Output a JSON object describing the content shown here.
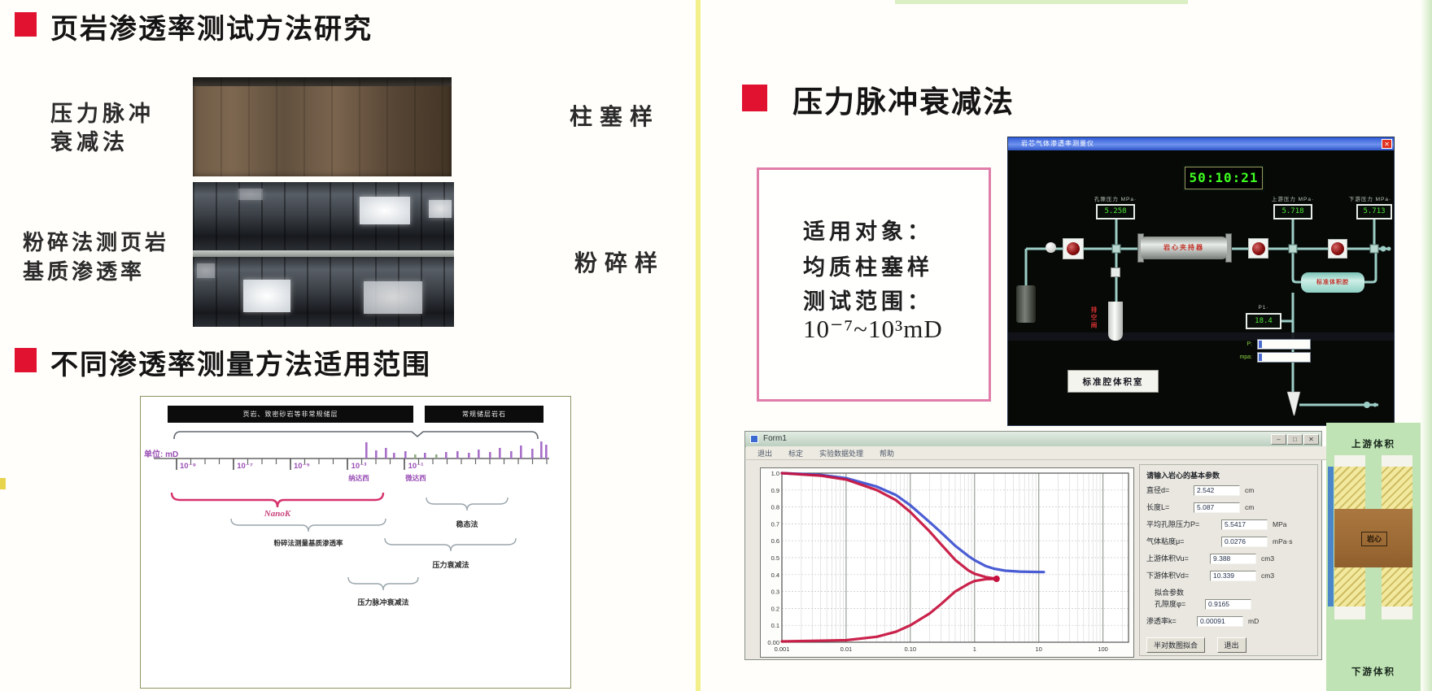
{
  "left": {
    "title1": "页岩渗透率测试方法研究",
    "pulse_label_line1": "压力脉冲",
    "pulse_label_line2": "衰减法",
    "plug_sample_label": "柱塞样",
    "crush_label_line1": "粉碎法测页岩",
    "crush_label_line2": "基质渗透率",
    "crushed_sample_label": "粉碎样",
    "title2": "不同渗透率测量方法适用范围"
  },
  "right": {
    "title": "压力脉冲衰减法",
    "infobox": {
      "line1": "适用对象：",
      "line2": "均质柱塞样",
      "line3": "测试范围：",
      "line4": "10⁻⁷~10³mD"
    },
    "daq_window": {
      "title": "岩芯气体渗透率测量仪",
      "close_glyph": "✕",
      "timer": "50:10:21",
      "gauges": [
        {
          "label": "孔隙压力 MPa·",
          "value": "5.258"
        },
        {
          "label": "上游压力 MPa·",
          "value": "5.718"
        },
        {
          "label": "下游压力 MPa·",
          "value": "5.713"
        }
      ],
      "gauge_small": {
        "label": "P1·",
        "value": "18.4"
      },
      "holder_label": "岩心夹持器",
      "holder2_label": "标准体积腔",
      "ref_box_label": "标准腔体积室",
      "vent_label": "排空阀",
      "field1_label": "P:",
      "field2_label": "mpa:"
    },
    "form_window": {
      "title": "Form1",
      "window_controls": [
        "–",
        "□",
        "✕"
      ],
      "menu": [
        "退出",
        "标定",
        "实验数据处理",
        "帮助"
      ],
      "panel": {
        "header": "请输入岩心的基本参数",
        "rows": [
          {
            "label": "直径d=",
            "value": "2.542",
            "unit": "cm"
          },
          {
            "label": "长度L=",
            "value": "5.087",
            "unit": "cm"
          },
          {
            "label": "平均孔隙压力P=",
            "value": "5.5417",
            "unit": "MPa"
          },
          {
            "label": "气体粘度μ=",
            "value": "0.0276",
            "unit": "mPa·s"
          },
          {
            "label": "上游体积Vu=",
            "value": "9.388",
            "unit": "cm3"
          },
          {
            "label": "下游体积Vd=",
            "value": "10.339",
            "unit": "cm3"
          }
        ],
        "fit_header": "拟合参数",
        "fit_rows": [
          {
            "label": "孔隙度φ=",
            "value": "0.9165",
            "unit": ""
          },
          {
            "label": "渗透率k=",
            "value": "0.00091",
            "unit": "mD"
          }
        ],
        "buttons": [
          "半对数图拟合",
          "退出"
        ]
      }
    },
    "schematic_panel": {
      "top": "上游体积",
      "core": "岩心",
      "bottom": "下游体积"
    }
  },
  "chart_data": [
    {
      "id": "permeability-range",
      "type": "scatter",
      "title": "不同渗透率测量方法适用范围",
      "x_unit_label": "单位: mD",
      "group_left": "页岩、致密砂岩等非常规储层",
      "group_right": "常规储层岩石",
      "x_tick_labels": [
        "10⁻⁹",
        "10⁻⁷",
        "10⁻⁵",
        "10⁻³",
        "10⁻¹"
      ],
      "x_tick_sub_labels": [
        "纳达西",
        "微达西"
      ],
      "method_ranges": [
        {
          "label": "NanoK"
        },
        {
          "label": "粉碎法测量基质渗透率"
        },
        {
          "label": "稳态法"
        },
        {
          "label": "压力衰减法"
        },
        {
          "label": "压力脉冲衰减法"
        }
      ],
      "marker_color": "#a86fc9",
      "marker_alt_color": "#8faa84",
      "markers": [
        [
          262,
          20
        ],
        [
          274,
          10
        ],
        [
          286,
          13
        ],
        [
          296,
          7
        ],
        [
          310,
          9
        ],
        [
          322,
          5,
          1
        ],
        [
          334,
          7
        ],
        [
          348,
          5,
          1
        ],
        [
          360,
          8
        ],
        [
          374,
          9
        ],
        [
          388,
          7
        ],
        [
          400,
          11
        ],
        [
          414,
          8
        ],
        [
          426,
          13
        ],
        [
          440,
          9
        ],
        [
          452,
          16
        ],
        [
          466,
          12
        ],
        [
          477,
          21
        ],
        [
          483,
          17
        ]
      ]
    },
    {
      "id": "pulse-decay-curves",
      "type": "line",
      "x_scale": "log",
      "xlim": [
        0.001,
        250
      ],
      "ylim": [
        0,
        1
      ],
      "grid": true,
      "x_ticks": [
        0.001,
        0.01,
        0.1,
        1,
        10,
        100
      ],
      "x_tick_labels": [
        "0.001",
        "0.01",
        "0.10",
        "1",
        "10",
        "100"
      ],
      "y_tick_labels": [
        "1.0",
        "0.9",
        "0.8",
        "0.7",
        "0.6",
        "0.5",
        "0.4",
        "0.3",
        "0.2",
        "0.1",
        "0.00"
      ],
      "series": [
        {
          "name": "blue-curve",
          "color": "#3c4fd0",
          "points": [
            [
              0.001,
              1.0
            ],
            [
              0.004,
              0.99
            ],
            [
              0.01,
              0.97
            ],
            [
              0.03,
              0.92
            ],
            [
              0.06,
              0.87
            ],
            [
              0.1,
              0.81
            ],
            [
              0.2,
              0.71
            ],
            [
              0.3,
              0.65
            ],
            [
              0.5,
              0.57
            ],
            [
              0.8,
              0.51
            ],
            [
              1,
              0.485
            ],
            [
              1.5,
              0.45
            ],
            [
              2,
              0.435
            ],
            [
              3,
              0.423
            ],
            [
              5,
              0.418
            ],
            [
              8,
              0.416
            ],
            [
              12,
              0.415
            ]
          ]
        },
        {
          "name": "red-upper-curve",
          "color": "#c5103d",
          "end_dot": true,
          "points": [
            [
              0.001,
              1.0
            ],
            [
              0.004,
              0.985
            ],
            [
              0.01,
              0.962
            ],
            [
              0.03,
              0.9
            ],
            [
              0.06,
              0.84
            ],
            [
              0.1,
              0.77
            ],
            [
              0.2,
              0.655
            ],
            [
              0.3,
              0.58
            ],
            [
              0.5,
              0.487
            ],
            [
              0.8,
              0.425
            ],
            [
              1,
              0.405
            ],
            [
              1.5,
              0.385
            ],
            [
              2.2,
              0.375
            ]
          ]
        },
        {
          "name": "red-lower-curve",
          "color": "#c5103d",
          "points": [
            [
              0.001,
              0.005
            ],
            [
              0.01,
              0.012
            ],
            [
              0.03,
              0.032
            ],
            [
              0.06,
              0.062
            ],
            [
              0.1,
              0.1
            ],
            [
              0.2,
              0.17
            ],
            [
              0.3,
              0.225
            ],
            [
              0.5,
              0.3
            ],
            [
              0.8,
              0.345
            ],
            [
              1,
              0.362
            ],
            [
              1.5,
              0.373
            ],
            [
              2.2,
              0.375
            ]
          ]
        }
      ]
    }
  ]
}
